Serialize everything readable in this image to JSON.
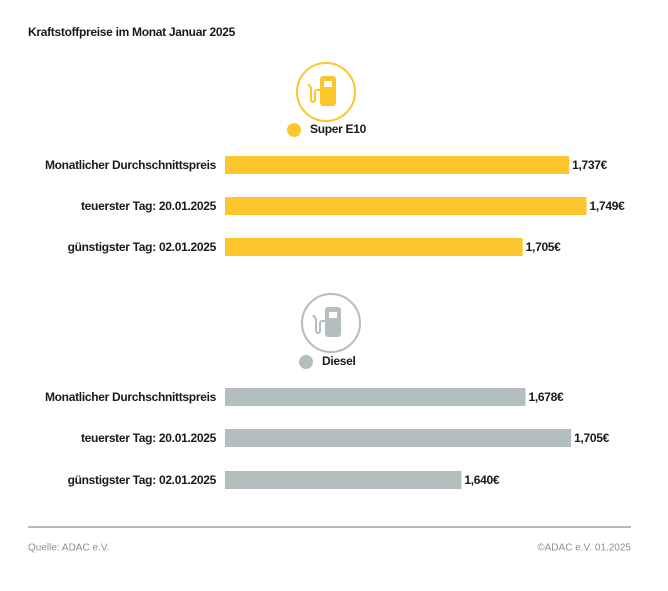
{
  "title": "Kraftstoffpreise im Monat Januar 2025",
  "chart_data": [
    {
      "type": "bar",
      "orientation": "horizontal",
      "categories": [
        "Monatlicher Durchschnittspreis",
        "teuerster Tag: 20.01.2025",
        "günstigster Tag: 02.01.2025"
      ],
      "series": [
        {
          "name": "Super E10",
          "color": "#fcc72e",
          "values": [
            1.737,
            1.749,
            1.705
          ],
          "value_labels": [
            "1,737€",
            "1,749€",
            "1,705€"
          ]
        }
      ],
      "xlim": [
        1.5,
        1.75
      ]
    },
    {
      "type": "bar",
      "orientation": "horizontal",
      "categories": [
        "Monatlicher Durchschnittspreis",
        "teuerster Tag: 20.01.2025",
        "günstigster Tag: 02.01.2025"
      ],
      "series": [
        {
          "name": "Diesel",
          "color": "#b4bebe",
          "values": [
            1.678,
            1.705,
            1.64
          ],
          "value_labels": [
            "1,678€",
            "1,705€",
            "1,640€"
          ]
        }
      ],
      "xlim": [
        1.5,
        1.715
      ]
    }
  ],
  "footer": {
    "source": "Quelle: ADAC e.V.",
    "copyright": "©ADAC e.V. 01.2025"
  }
}
